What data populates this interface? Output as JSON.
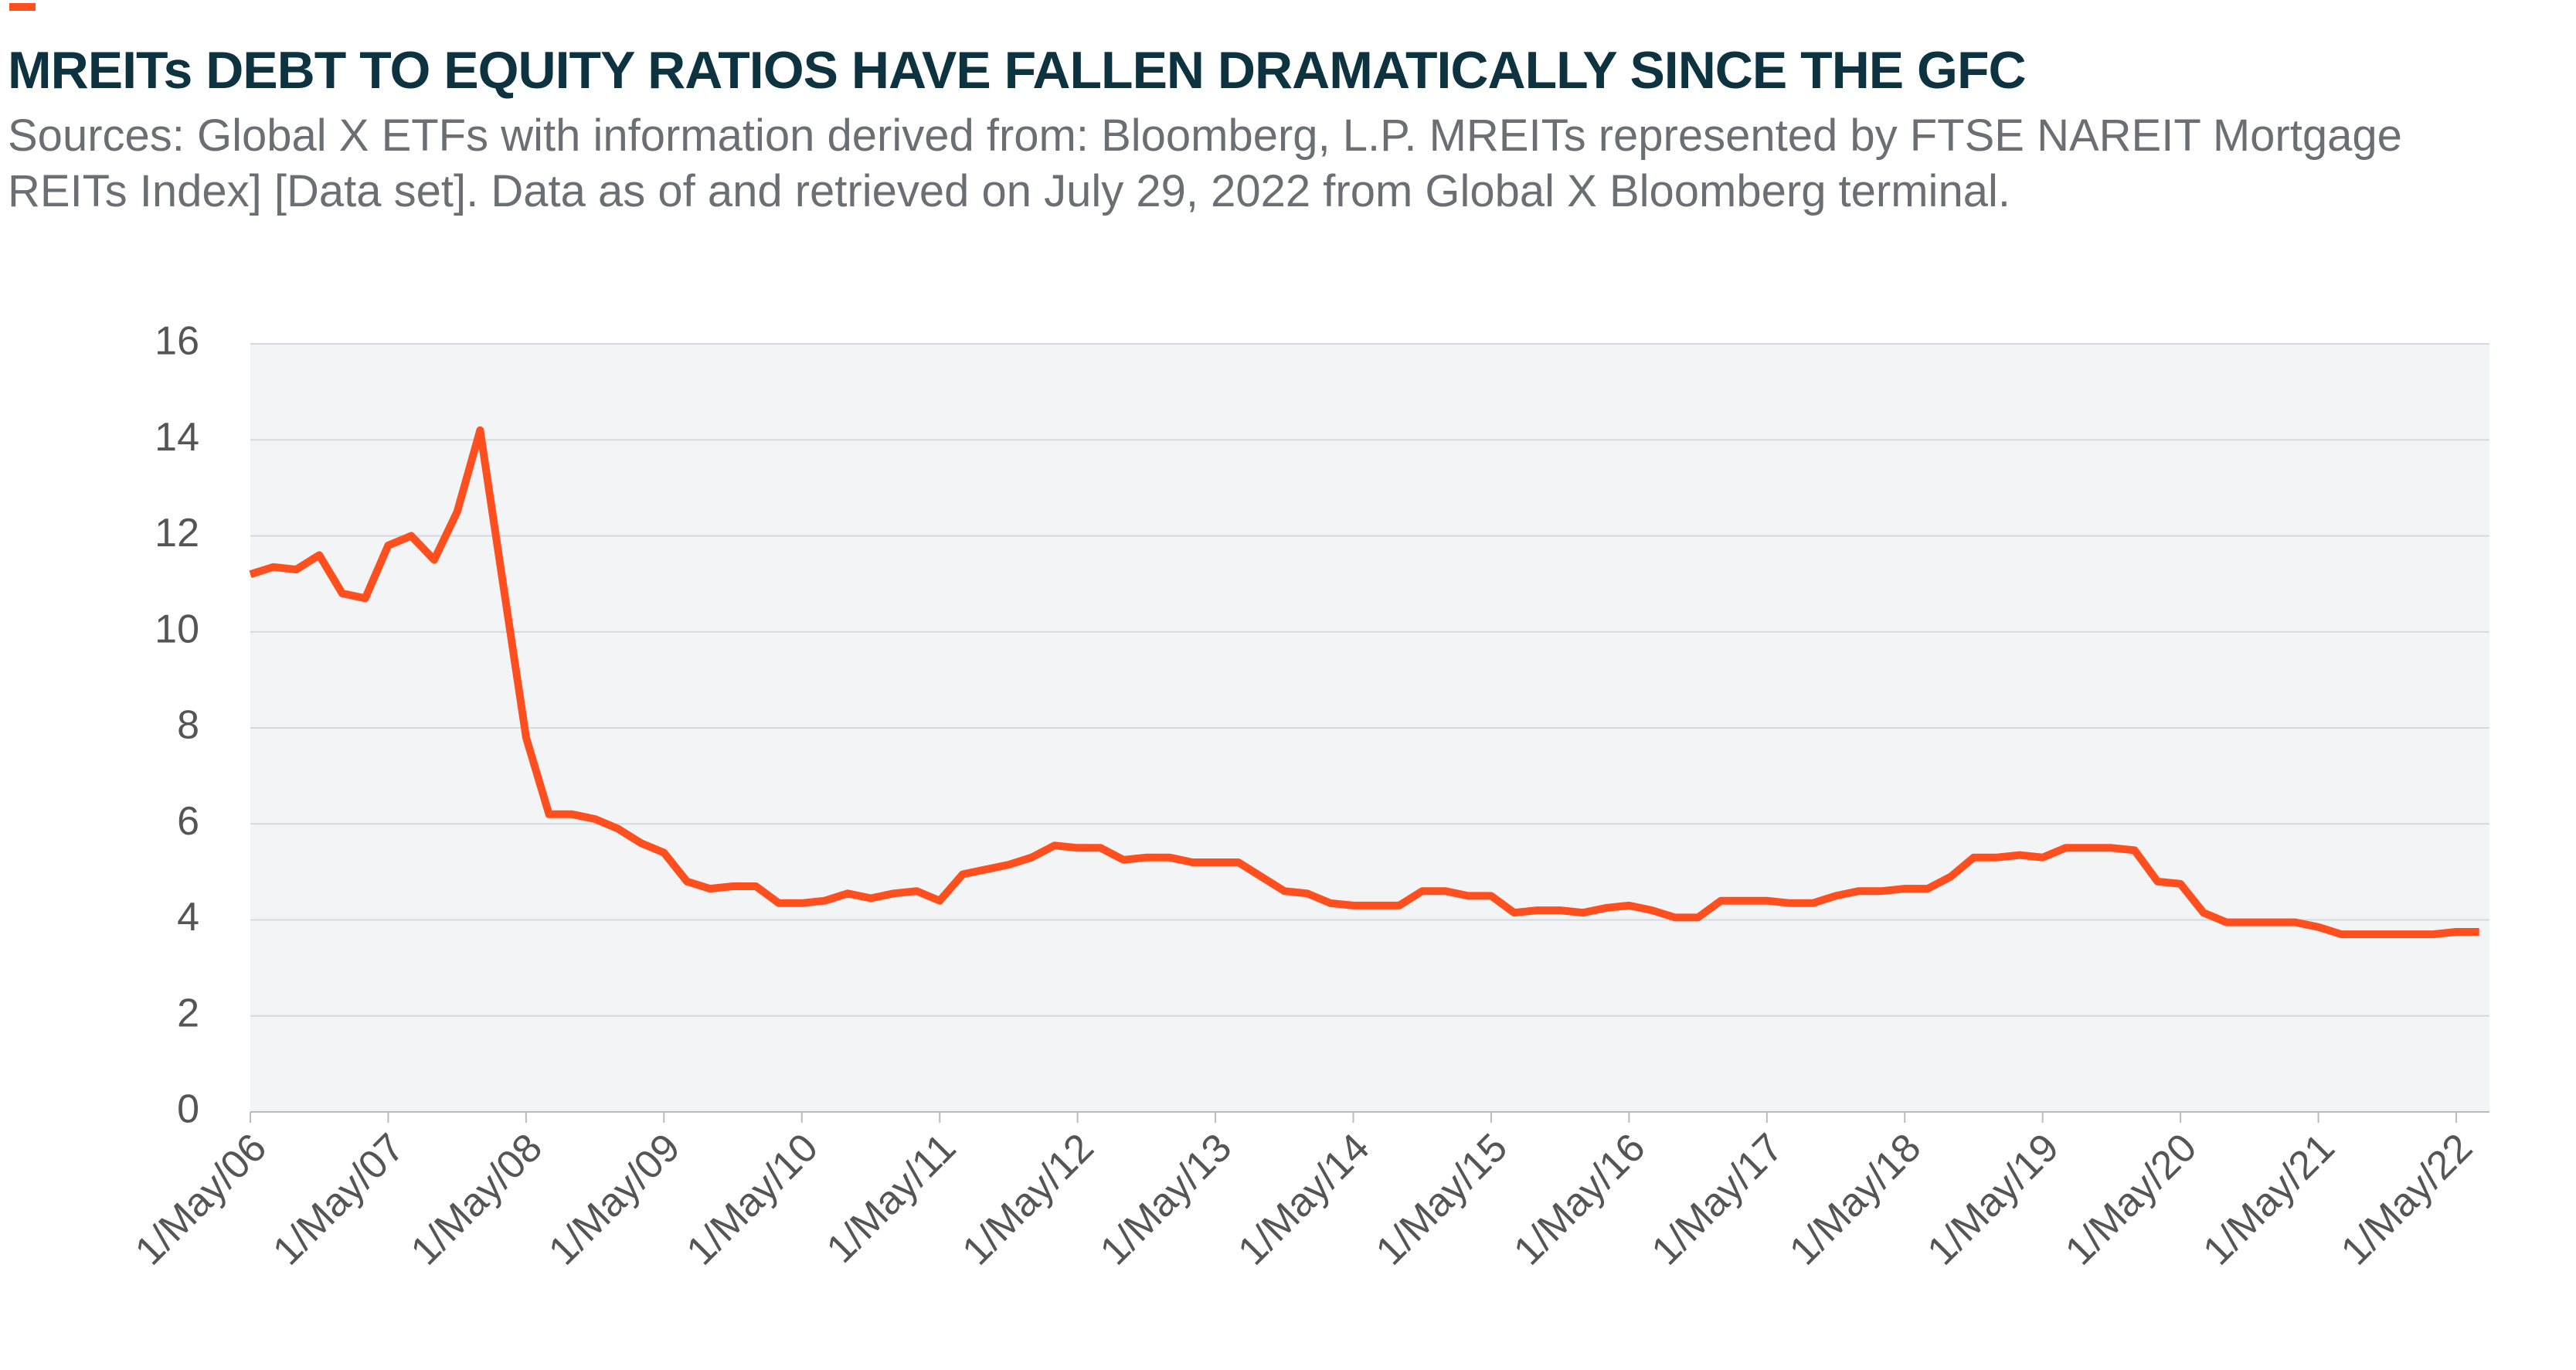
{
  "chart_data": {
    "type": "line",
    "title": "MREITs DEBT TO EQUITY RATIOS HAVE FALLEN DRAMATICALLY SINCE THE GFC",
    "subtitle": "Sources: Global X ETFs with information derived from: Bloomberg, L.P. MREITs represented by FTSE NAREIT Mortgage REITs Index] [Data set]. Data as of and retrieved on July 29, 2022 from Global X Bloomberg terminal.",
    "categories": [
      "1/May/06",
      null,
      null,
      null,
      null,
      null,
      "1/May/07",
      null,
      null,
      null,
      null,
      null,
      "1/May/08",
      null,
      null,
      null,
      null,
      null,
      "1/May/09",
      null,
      null,
      null,
      null,
      null,
      "1/May/10",
      null,
      null,
      null,
      null,
      null,
      "1/May/11",
      null,
      null,
      null,
      null,
      null,
      "1/May/12",
      null,
      null,
      null,
      null,
      null,
      "1/May/13",
      null,
      null,
      null,
      null,
      null,
      "1/May/14",
      null,
      null,
      null,
      null,
      null,
      "1/May/15",
      null,
      null,
      null,
      null,
      null,
      "1/May/16",
      null,
      null,
      null,
      null,
      null,
      "1/May/17",
      null,
      null,
      null,
      null,
      null,
      "1/May/18",
      null,
      null,
      null,
      null,
      null,
      "1/May/19",
      null,
      null,
      null,
      null,
      null,
      "1/May/20",
      null,
      null,
      null,
      null,
      null,
      "1/May/21",
      null,
      null,
      null,
      null,
      null,
      "1/May/22",
      null
    ],
    "values": [
      11.2,
      11.35,
      11.3,
      11.6,
      10.8,
      10.7,
      11.8,
      12.0,
      11.5,
      12.5,
      14.2,
      11.0,
      7.8,
      6.2,
      6.2,
      6.1,
      5.9,
      5.6,
      5.4,
      4.8,
      4.65,
      4.7,
      4.7,
      4.35,
      4.35,
      4.4,
      4.55,
      4.45,
      4.55,
      4.6,
      4.4,
      4.95,
      5.05,
      5.15,
      5.3,
      5.55,
      5.5,
      5.5,
      5.25,
      5.3,
      5.3,
      5.2,
      5.2,
      5.2,
      4.9,
      4.6,
      4.55,
      4.35,
      4.3,
      4.3,
      4.3,
      4.6,
      4.6,
      4.5,
      4.5,
      4.15,
      4.2,
      4.2,
      4.15,
      4.25,
      4.3,
      4.2,
      4.05,
      4.05,
      4.4,
      4.4,
      4.4,
      4.35,
      4.35,
      4.5,
      4.6,
      4.6,
      4.65,
      4.65,
      4.9,
      5.3,
      5.3,
      5.35,
      5.3,
      5.5,
      5.5,
      5.5,
      5.45,
      4.8,
      4.75,
      4.15,
      3.95,
      3.95,
      3.95,
      3.95,
      3.85,
      3.7,
      3.7,
      3.7,
      3.7,
      3.7,
      3.75,
      3.75
    ],
    "color": "#ff4f1f",
    "ylim": [
      0,
      16
    ],
    "yticks": [
      0,
      2,
      4,
      6,
      8,
      10,
      12,
      14,
      16
    ],
    "grid": true
  }
}
